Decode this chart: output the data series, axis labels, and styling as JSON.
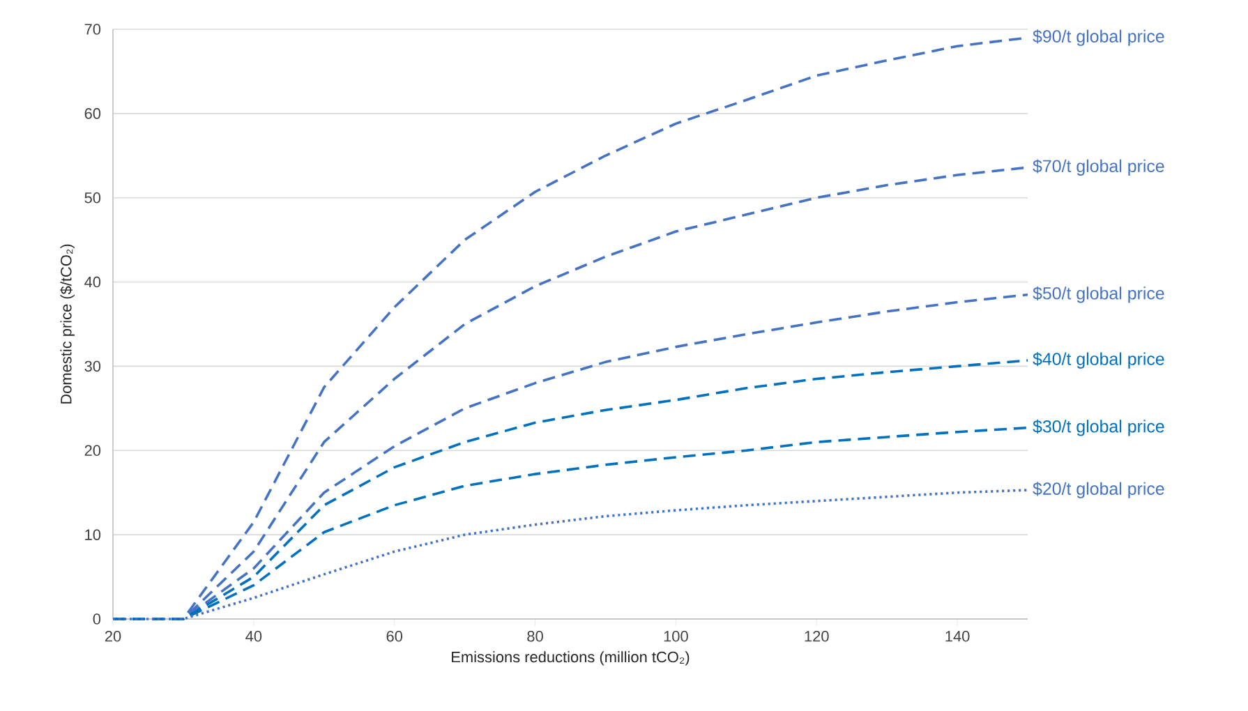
{
  "chart_data": {
    "type": "line",
    "xlabel": "Emissions reductions (million tCO₂)",
    "ylabel": "Domestic price ($/tCO₂)",
    "x": [
      20,
      30,
      40,
      50,
      60,
      70,
      80,
      90,
      100,
      110,
      120,
      130,
      140,
      150
    ],
    "xlim": [
      20,
      150
    ],
    "xticks": [
      20,
      40,
      60,
      80,
      100,
      120,
      140
    ],
    "ylim": [
      0,
      70
    ],
    "yticks": [
      0,
      10,
      20,
      30,
      40,
      50,
      60,
      70
    ],
    "grid": "y",
    "marker": "none",
    "series": [
      {
        "name": "$90/t global price",
        "color": "#4472c4",
        "line_style": "dashed",
        "values": [
          0,
          0,
          11.5,
          27.5,
          37,
          45,
          50.7,
          55,
          58.8,
          61.6,
          64.5,
          66.3,
          68,
          69
        ]
      },
      {
        "name": "$70/t global price",
        "color": "#4472c4",
        "line_style": "dashed",
        "values": [
          0,
          0,
          8,
          21,
          28.5,
          35,
          39.5,
          43,
          46,
          48,
          50,
          51.5,
          52.7,
          53.6
        ]
      },
      {
        "name": "$50/t global price",
        "color": "#4472c4",
        "line_style": "dashed",
        "values": [
          0,
          0,
          6,
          15,
          20.5,
          25,
          28,
          30.5,
          32.3,
          33.8,
          35.2,
          36.5,
          37.6,
          38.5
        ]
      },
      {
        "name": "$40/t global price",
        "color": "#0070c0",
        "line_style": "dashed",
        "values": [
          0,
          0,
          5,
          13.5,
          18,
          21,
          23.3,
          24.8,
          26,
          27.4,
          28.5,
          29.3,
          30,
          30.7
        ]
      },
      {
        "name": "$30/t global price",
        "color": "#0070c0",
        "line_style": "dashed",
        "values": [
          0,
          0,
          4,
          10.3,
          13.5,
          15.8,
          17.2,
          18.3,
          19.2,
          20,
          21,
          21.6,
          22.2,
          22.7
        ]
      },
      {
        "name": "$20/t global price",
        "color": "#4472c4",
        "line_style": "dotted",
        "values": [
          0,
          0,
          2.5,
          5.3,
          8,
          10,
          11.2,
          12.2,
          12.9,
          13.5,
          14,
          14.5,
          15,
          15.3
        ]
      }
    ]
  }
}
